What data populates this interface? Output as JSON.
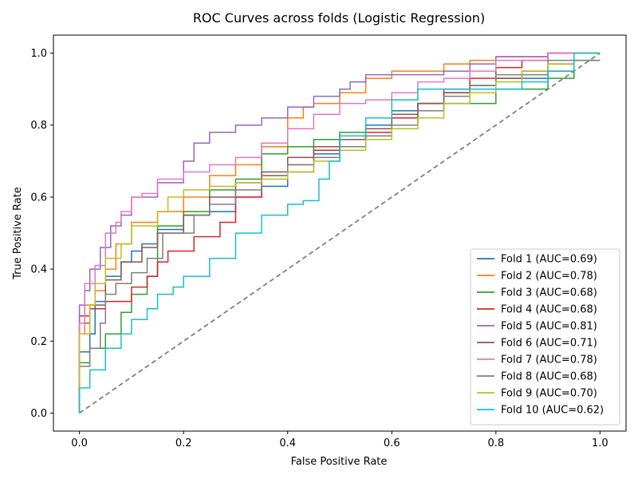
{
  "chart_data": {
    "type": "line",
    "title": "ROC Curves across folds (Logistic Regression)",
    "xlabel": "False Positive Rate",
    "ylabel": "True Positive Rate",
    "xlim": [
      -0.05,
      1.05
    ],
    "ylim": [
      -0.05,
      1.05
    ],
    "xticks": [
      "0.0",
      "0.2",
      "0.4",
      "0.6",
      "0.8",
      "1.0"
    ],
    "yticks": [
      "0.0",
      "0.2",
      "0.4",
      "0.6",
      "0.8",
      "1.0"
    ],
    "grid": false,
    "legend_position": "lower-right",
    "baseline": {
      "style": "dashed",
      "color": "#808080",
      "points": [
        [
          0,
          0
        ],
        [
          1,
          1
        ]
      ]
    },
    "series": [
      {
        "name": "Fold 1 (AUC=0.69)",
        "color": "#1f77b4",
        "points": [
          [
            0,
            0
          ],
          [
            0,
            0.13
          ],
          [
            0.02,
            0.17
          ],
          [
            0.03,
            0.22
          ],
          [
            0.05,
            0.31
          ],
          [
            0.08,
            0.38
          ],
          [
            0.1,
            0.42
          ],
          [
            0.12,
            0.45
          ],
          [
            0.15,
            0.47
          ],
          [
            0.2,
            0.51
          ],
          [
            0.25,
            0.55
          ],
          [
            0.3,
            0.56
          ],
          [
            0.35,
            0.6
          ],
          [
            0.4,
            0.63
          ],
          [
            0.45,
            0.67
          ],
          [
            0.5,
            0.72
          ],
          [
            0.55,
            0.76
          ],
          [
            0.6,
            0.8
          ],
          [
            0.65,
            0.84
          ],
          [
            0.7,
            0.86
          ],
          [
            0.75,
            0.89
          ],
          [
            0.8,
            0.91
          ],
          [
            0.9,
            0.93
          ],
          [
            0.95,
            0.95
          ],
          [
            1,
            1
          ]
        ]
      },
      {
        "name": "Fold 2 (AUC=0.78)",
        "color": "#ff7f0e",
        "points": [
          [
            0,
            0
          ],
          [
            0,
            0.17
          ],
          [
            0.01,
            0.22
          ],
          [
            0.03,
            0.3
          ],
          [
            0.05,
            0.34
          ],
          [
            0.07,
            0.4
          ],
          [
            0.1,
            0.47
          ],
          [
            0.15,
            0.53
          ],
          [
            0.2,
            0.56
          ],
          [
            0.25,
            0.6
          ],
          [
            0.3,
            0.66
          ],
          [
            0.35,
            0.69
          ],
          [
            0.4,
            0.74
          ],
          [
            0.43,
            0.82
          ],
          [
            0.45,
            0.85
          ],
          [
            0.5,
            0.86
          ],
          [
            0.55,
            0.89
          ],
          [
            0.6,
            0.93
          ],
          [
            0.7,
            0.95
          ],
          [
            0.75,
            0.97
          ],
          [
            0.8,
            0.98
          ],
          [
            0.9,
            0.99
          ],
          [
            1,
            1
          ]
        ]
      },
      {
        "name": "Fold 3 (AUC=0.68)",
        "color": "#2ca02c",
        "points": [
          [
            0,
            0
          ],
          [
            0,
            0.11
          ],
          [
            0.02,
            0.14
          ],
          [
            0.05,
            0.18
          ],
          [
            0.08,
            0.22
          ],
          [
            0.1,
            0.28
          ],
          [
            0.13,
            0.33
          ],
          [
            0.15,
            0.38
          ],
          [
            0.2,
            0.52
          ],
          [
            0.25,
            0.56
          ],
          [
            0.3,
            0.62
          ],
          [
            0.35,
            0.65
          ],
          [
            0.4,
            0.72
          ],
          [
            0.45,
            0.74
          ],
          [
            0.5,
            0.76
          ],
          [
            0.55,
            0.78
          ],
          [
            0.6,
            0.79
          ],
          [
            0.65,
            0.82
          ],
          [
            0.7,
            0.84
          ],
          [
            0.8,
            0.86
          ],
          [
            0.9,
            0.9
          ],
          [
            0.95,
            0.93
          ],
          [
            1,
            0.98
          ]
        ]
      },
      {
        "name": "Fold 4 (AUC=0.68)",
        "color": "#d62728",
        "points": [
          [
            0,
            0
          ],
          [
            0,
            0.22
          ],
          [
            0.02,
            0.27
          ],
          [
            0.05,
            0.29
          ],
          [
            0.1,
            0.31
          ],
          [
            0.13,
            0.35
          ],
          [
            0.15,
            0.38
          ],
          [
            0.17,
            0.42
          ],
          [
            0.22,
            0.45
          ],
          [
            0.27,
            0.49
          ],
          [
            0.3,
            0.53
          ],
          [
            0.35,
            0.6
          ],
          [
            0.4,
            0.66
          ],
          [
            0.45,
            0.69
          ],
          [
            0.5,
            0.73
          ],
          [
            0.55,
            0.76
          ],
          [
            0.6,
            0.78
          ],
          [
            0.65,
            0.82
          ],
          [
            0.7,
            0.86
          ],
          [
            0.75,
            0.9
          ],
          [
            0.8,
            0.93
          ],
          [
            0.85,
            0.96
          ],
          [
            0.9,
            0.98
          ],
          [
            1,
            1
          ]
        ]
      },
      {
        "name": "Fold 5 (AUC=0.81)",
        "color": "#9467bd",
        "points": [
          [
            0,
            0
          ],
          [
            0,
            0.27
          ],
          [
            0.01,
            0.3
          ],
          [
            0.02,
            0.34
          ],
          [
            0.04,
            0.4
          ],
          [
            0.06,
            0.46
          ],
          [
            0.08,
            0.52
          ],
          [
            0.1,
            0.55
          ],
          [
            0.15,
            0.6
          ],
          [
            0.2,
            0.64
          ],
          [
            0.22,
            0.7
          ],
          [
            0.25,
            0.75
          ],
          [
            0.3,
            0.78
          ],
          [
            0.35,
            0.8
          ],
          [
            0.4,
            0.82
          ],
          [
            0.45,
            0.85
          ],
          [
            0.5,
            0.88
          ],
          [
            0.52,
            0.9
          ],
          [
            0.55,
            0.92
          ],
          [
            0.6,
            0.94
          ],
          [
            0.7,
            0.94
          ],
          [
            0.75,
            0.95
          ],
          [
            0.8,
            0.97
          ],
          [
            0.9,
            0.99
          ],
          [
            1,
            1
          ]
        ]
      },
      {
        "name": "Fold 6 (AUC=0.71)",
        "color": "#8c564b",
        "points": [
          [
            0,
            0
          ],
          [
            0,
            0.14
          ],
          [
            0.02,
            0.25
          ],
          [
            0.05,
            0.3
          ],
          [
            0.08,
            0.37
          ],
          [
            0.12,
            0.42
          ],
          [
            0.15,
            0.46
          ],
          [
            0.2,
            0.5
          ],
          [
            0.25,
            0.55
          ],
          [
            0.3,
            0.6
          ],
          [
            0.35,
            0.64
          ],
          [
            0.4,
            0.67
          ],
          [
            0.45,
            0.71
          ],
          [
            0.5,
            0.74
          ],
          [
            0.55,
            0.76
          ],
          [
            0.6,
            0.79
          ],
          [
            0.65,
            0.83
          ],
          [
            0.7,
            0.86
          ],
          [
            0.75,
            0.89
          ],
          [
            0.8,
            0.91
          ],
          [
            0.85,
            0.93
          ],
          [
            0.9,
            0.95
          ],
          [
            0.95,
            0.97
          ],
          [
            1,
            1
          ]
        ]
      },
      {
        "name": "Fold 7 (AUC=0.78)",
        "color": "#e377c2",
        "points": [
          [
            0,
            0
          ],
          [
            0,
            0.15
          ],
          [
            0.01,
            0.25
          ],
          [
            0.03,
            0.36
          ],
          [
            0.05,
            0.41
          ],
          [
            0.07,
            0.5
          ],
          [
            0.08,
            0.53
          ],
          [
            0.1,
            0.56
          ],
          [
            0.12,
            0.6
          ],
          [
            0.15,
            0.61
          ],
          [
            0.2,
            0.65
          ],
          [
            0.25,
            0.67
          ],
          [
            0.3,
            0.69
          ],
          [
            0.35,
            0.71
          ],
          [
            0.4,
            0.75
          ],
          [
            0.45,
            0.79
          ],
          [
            0.5,
            0.83
          ],
          [
            0.55,
            0.86
          ],
          [
            0.6,
            0.87
          ],
          [
            0.65,
            0.89
          ],
          [
            0.7,
            0.92
          ],
          [
            0.75,
            0.93
          ],
          [
            0.8,
            0.95
          ],
          [
            0.9,
            0.98
          ],
          [
            1,
            1
          ]
        ]
      },
      {
        "name": "Fold 8 (AUC=0.68)",
        "color": "#7f7f7f",
        "points": [
          [
            0,
            0
          ],
          [
            0,
            0.11
          ],
          [
            0.02,
            0.13
          ],
          [
            0.04,
            0.18
          ],
          [
            0.05,
            0.25
          ],
          [
            0.07,
            0.33
          ],
          [
            0.1,
            0.36
          ],
          [
            0.13,
            0.39
          ],
          [
            0.16,
            0.43
          ],
          [
            0.18,
            0.5
          ],
          [
            0.22,
            0.5
          ],
          [
            0.25,
            0.55
          ],
          [
            0.3,
            0.58
          ],
          [
            0.35,
            0.62
          ],
          [
            0.4,
            0.66
          ],
          [
            0.45,
            0.69
          ],
          [
            0.5,
            0.71
          ],
          [
            0.55,
            0.74
          ],
          [
            0.6,
            0.77
          ],
          [
            0.65,
            0.8
          ],
          [
            0.7,
            0.84
          ],
          [
            0.75,
            0.88
          ],
          [
            0.8,
            0.91
          ],
          [
            0.9,
            0.94
          ],
          [
            1,
            0.98
          ]
        ]
      },
      {
        "name": "Fold 9 (AUC=0.70)",
        "color": "#bcbd22",
        "points": [
          [
            0,
            0
          ],
          [
            0,
            0.12
          ],
          [
            0.02,
            0.22
          ],
          [
            0.03,
            0.3
          ],
          [
            0.05,
            0.36
          ],
          [
            0.08,
            0.43
          ],
          [
            0.1,
            0.47
          ],
          [
            0.15,
            0.52
          ],
          [
            0.17,
            0.56
          ],
          [
            0.2,
            0.6
          ],
          [
            0.25,
            0.62
          ],
          [
            0.3,
            0.63
          ],
          [
            0.35,
            0.64
          ],
          [
            0.4,
            0.65
          ],
          [
            0.45,
            0.67
          ],
          [
            0.5,
            0.7
          ],
          [
            0.55,
            0.73
          ],
          [
            0.6,
            0.76
          ],
          [
            0.65,
            0.79
          ],
          [
            0.7,
            0.82
          ],
          [
            0.75,
            0.86
          ],
          [
            0.8,
            0.89
          ],
          [
            0.85,
            0.92
          ],
          [
            0.9,
            0.95
          ],
          [
            0.95,
            0.97
          ],
          [
            1,
            1
          ]
        ]
      },
      {
        "name": "Fold 10 (AUC=0.62)",
        "color": "#17becf",
        "points": [
          [
            0,
            0
          ],
          [
            0.02,
            0.07
          ],
          [
            0.05,
            0.12
          ],
          [
            0.08,
            0.18
          ],
          [
            0.1,
            0.22
          ],
          [
            0.13,
            0.26
          ],
          [
            0.15,
            0.29
          ],
          [
            0.18,
            0.33
          ],
          [
            0.2,
            0.35
          ],
          [
            0.25,
            0.38
          ],
          [
            0.3,
            0.43
          ],
          [
            0.35,
            0.5
          ],
          [
            0.4,
            0.55
          ],
          [
            0.43,
            0.58
          ],
          [
            0.46,
            0.59
          ],
          [
            0.48,
            0.65
          ],
          [
            0.5,
            0.7
          ],
          [
            0.55,
            0.77
          ],
          [
            0.6,
            0.82
          ],
          [
            0.65,
            0.87
          ],
          [
            0.7,
            0.9
          ],
          [
            0.8,
            0.9
          ],
          [
            0.85,
            0.9
          ],
          [
            0.9,
            0.92
          ],
          [
            0.95,
            0.95
          ],
          [
            1,
            1
          ]
        ]
      }
    ]
  }
}
